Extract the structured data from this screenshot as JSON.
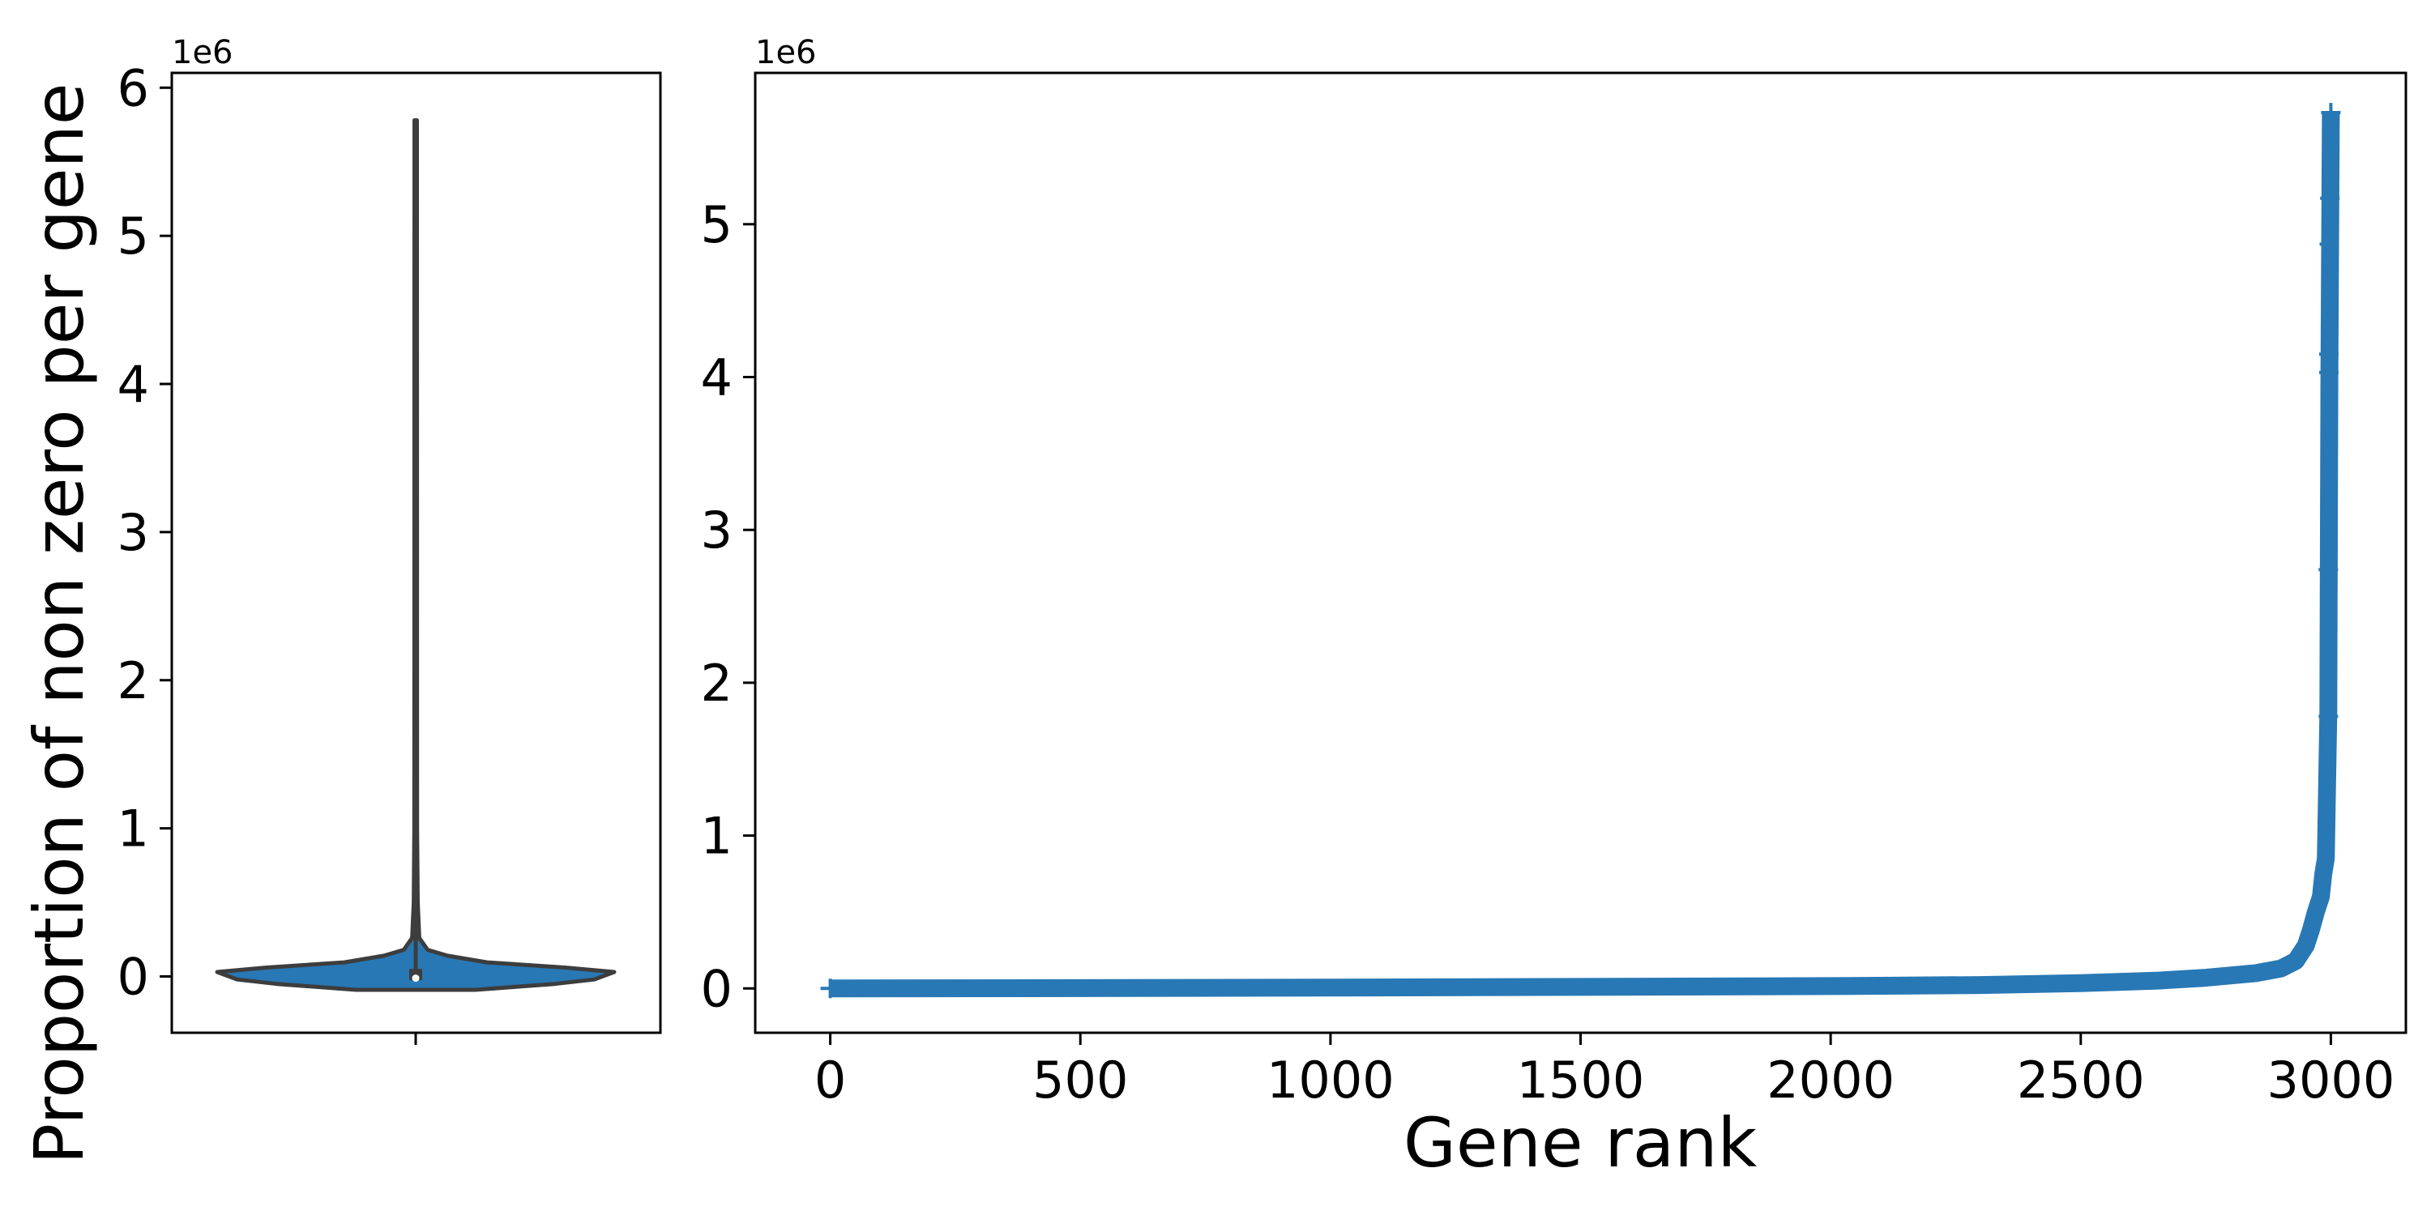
{
  "chart_data": [
    {
      "type": "violin",
      "panel": "left",
      "ylabel": "Proportion of non zero per gene",
      "y_exponent_label": "1e6",
      "ylim": [
        -380000,
        6100000
      ],
      "y_ticks": [
        0,
        1,
        2,
        3,
        4,
        5,
        6
      ],
      "y_tick_scale": 1000000,
      "color": "#2878b5",
      "distribution": {
        "min": 0,
        "max": 5780000,
        "median": 5000,
        "q1": 0,
        "q3": 40000
      },
      "density_profile": [
        {
          "y": -90000,
          "w": 0.3
        },
        {
          "y": -50000,
          "w": 0.7
        },
        {
          "y": -20000,
          "w": 0.9
        },
        {
          "y": 30000,
          "w": 1.0
        },
        {
          "y": 60000,
          "w": 0.75
        },
        {
          "y": 95000,
          "w": 0.36
        },
        {
          "y": 140000,
          "w": 0.16
        },
        {
          "y": 180000,
          "w": 0.06
        },
        {
          "y": 260000,
          "w": 0.018
        },
        {
          "y": 500000,
          "w": 0.01
        },
        {
          "y": 1000000,
          "w": 0.007
        },
        {
          "y": 5780000,
          "w": 0.006
        }
      ]
    },
    {
      "type": "scatter",
      "panel": "right",
      "marker": "+",
      "color": "#2878b5",
      "xlabel": "Gene rank",
      "y_exponent_label": "1e6",
      "xlim": [
        -150,
        3150
      ],
      "ylim": [
        -290000,
        5990000
      ],
      "x_ticks": [
        0,
        500,
        1000,
        1500,
        2000,
        2500,
        3000
      ],
      "y_ticks": [
        0,
        1,
        2,
        3,
        4,
        5
      ],
      "y_tick_scale": 1000000,
      "n_points": 3000,
      "curve_points": [
        {
          "x": 0,
          "y": 0
        },
        {
          "x": 500,
          "y": 2000
        },
        {
          "x": 1000,
          "y": 5000
        },
        {
          "x": 1500,
          "y": 10000
        },
        {
          "x": 2000,
          "y": 15000
        },
        {
          "x": 2300,
          "y": 22000
        },
        {
          "x": 2500,
          "y": 35000
        },
        {
          "x": 2650,
          "y": 50000
        },
        {
          "x": 2750,
          "y": 70000
        },
        {
          "x": 2850,
          "y": 100000
        },
        {
          "x": 2900,
          "y": 130000
        },
        {
          "x": 2930,
          "y": 180000
        },
        {
          "x": 2950,
          "y": 280000
        },
        {
          "x": 2960,
          "y": 380000
        },
        {
          "x": 2970,
          "y": 500000
        },
        {
          "x": 2980,
          "y": 600000
        },
        {
          "x": 2985,
          "y": 750000
        },
        {
          "x": 2990,
          "y": 850000
        },
        {
          "x": 2995,
          "y": 1800000
        },
        {
          "x": 2997,
          "y": 4000000
        },
        {
          "x": 3000,
          "y": 5730000
        }
      ],
      "outlier_points": [
        {
          "x": 2995,
          "y": 1780000
        },
        {
          "x": 2995,
          "y": 2740000
        },
        {
          "x": 2996,
          "y": 4030000
        },
        {
          "x": 2996,
          "y": 4150000
        },
        {
          "x": 2997,
          "y": 4870000
        },
        {
          "x": 2998,
          "y": 5170000
        },
        {
          "x": 3000,
          "y": 5730000
        }
      ]
    }
  ]
}
